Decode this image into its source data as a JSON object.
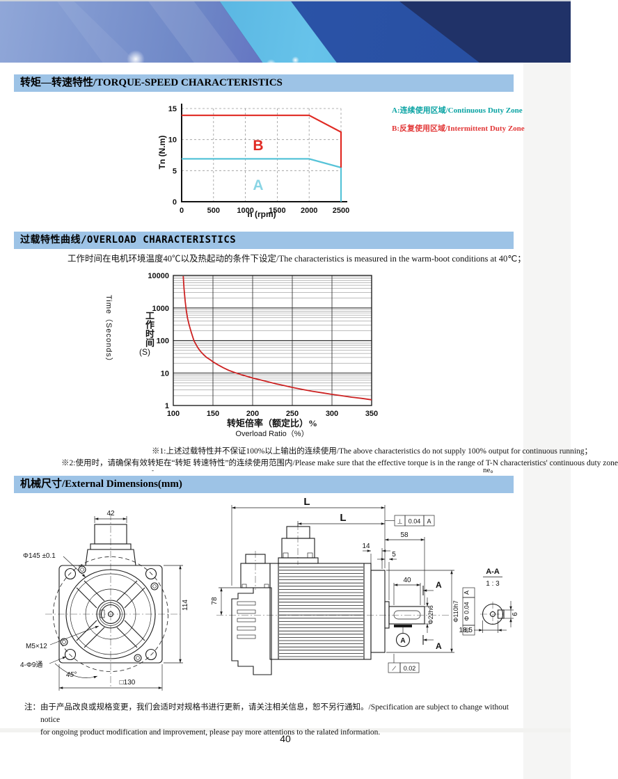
{
  "theme": {
    "header_bg": "#9dc3e6",
    "red": "#e02a23",
    "cyan": "#56c3d8",
    "navy": "#203268"
  },
  "section1": {
    "title": "转矩—转速特性/TORQUE-SPEED CHARACTERISTICS"
  },
  "section2": {
    "title": "过载特性曲线/OVERLOAD CHARACTERISTICS",
    "condition_note": "工作时间在电机环境温度40℃以及热起动的条件下设定/The characteristics is measured in the warm-boot conditions at 40℃；"
  },
  "section3": {
    "title": "机械尺寸/External Dimensions(mm)"
  },
  "notes": {
    "note1": "※1:上述过载特性并不保证100%以上输出的连续使用/The above characteristics do not supply 100% output for continuous running；",
    "note2": "※2:使用时，请确保有效转矩在“转矩 转速特性”的连续使用范围内/Please make sure that the effective torque is in the range of T-N characteristics' continuous duty zone",
    "artifact_dot": "-",
    "artifact_fragment": "ne。"
  },
  "footer": {
    "label": "注：",
    "line1": "由于产品改良或规格变更，我们会适时对规格书进行更新，请关注相关信息，恕不另行通知。/Specification are subject to change without notice",
    "line2": "for ongoing product modification and improvement, please pay more attentions to the ralated information.",
    "page_number": "40"
  },
  "chart_data": [
    {
      "type": "line",
      "title": "Torque-Speed Characteristics",
      "xlabel": "n (rpm)",
      "ylabel": "Tn (N.m)",
      "xlim": [
        0,
        2500
      ],
      "ylim": [
        0,
        15
      ],
      "xticks": [
        0,
        500,
        1000,
        1500,
        2000,
        2500
      ],
      "yticks": [
        0,
        5,
        10,
        15
      ],
      "grid": "dashed",
      "legend_pos": "right-outside",
      "legend": [
        {
          "label": "A:连续使用区域/Continuous Duty Zone",
          "color": "#0aa3a3"
        },
        {
          "label": "B:反复使用区域/Intermittent Duty Zone",
          "color": "#e23838"
        }
      ],
      "series": [
        {
          "name": "A continuous duty limit",
          "color": "#56c3d8",
          "points": [
            [
              0,
              6.9
            ],
            [
              2000,
              6.9
            ],
            [
              2500,
              5.5
            ],
            [
              2500,
              0
            ]
          ]
        },
        {
          "name": "B intermittent duty limit",
          "color": "#e02a23",
          "points": [
            [
              0,
              13.9
            ],
            [
              2000,
              13.9
            ],
            [
              2500,
              11.2
            ],
            [
              2500,
              5.5
            ]
          ]
        }
      ],
      "zone_labels": [
        {
          "text": "B",
          "color": "#e02a23",
          "x": 1200,
          "y": 8.3
        },
        {
          "text": "A",
          "color": "#8ad5e5",
          "x": 1200,
          "y": 1.9
        }
      ]
    },
    {
      "type": "line",
      "title": "Overload Characteristics",
      "xlabel_cn": "转矩倍率（额定比）%",
      "xlabel_en": "Overload Ratio（%）",
      "ylabel_en": "Time（Seconds）",
      "ylabel_cn": "工作时间",
      "ylabel_unit": "(S)",
      "xlim": [
        100,
        350
      ],
      "ylim_log": [
        1,
        10000
      ],
      "yscale": "log",
      "xticks": [
        100,
        150,
        200,
        250,
        300,
        350
      ],
      "yticks": [
        1,
        10,
        100,
        1000,
        10000
      ],
      "grid": "log-full",
      "series": [
        {
          "name": "overload curve",
          "color": "#cc2222",
          "points": [
            [
              112.5,
              9500
            ],
            [
              113.5,
              4000
            ],
            [
              115,
              1600
            ],
            [
              116.5,
              800
            ],
            [
              118,
              480
            ],
            [
              120,
              300
            ],
            [
              122,
              200
            ],
            [
              124,
              140
            ],
            [
              126,
              100
            ],
            [
              128,
              80
            ],
            [
              131,
              60
            ],
            [
              134,
              47
            ],
            [
              138,
              37
            ],
            [
              142,
              30
            ],
            [
              147,
              25
            ],
            [
              150,
              22
            ],
            [
              156,
              18
            ],
            [
              163,
              14.5
            ],
            [
              170,
              12
            ],
            [
              178,
              10.2
            ],
            [
              186,
              8.8
            ],
            [
              195,
              7.6
            ],
            [
              200,
              7
            ],
            [
              210,
              6.1
            ],
            [
              220,
              5.3
            ],
            [
              230,
              4.6
            ],
            [
              240,
              4.1
            ],
            [
              250,
              3.6
            ],
            [
              262,
              3.15
            ],
            [
              275,
              2.75
            ],
            [
              288,
              2.45
            ],
            [
              300,
              2.2
            ],
            [
              312,
              2.0
            ],
            [
              325,
              1.8
            ],
            [
              338,
              1.65
            ],
            [
              350,
              1.5
            ]
          ]
        }
      ]
    }
  ],
  "dimensions": {
    "front": {
      "d42": "42",
      "d145": "Φ145 ±0.1",
      "d114": "114",
      "m5": "M5×12",
      "d9": "4-Φ9通",
      "a45": "45°",
      "s130": "□130"
    },
    "side": {
      "L_outer": "L",
      "L_inner": "L",
      "perp_sym": "⊥",
      "perp_val": "0.04",
      "perp_datum": "A",
      "d58": "58",
      "d14": "14",
      "d5": "5",
      "d40": "40",
      "sectionA_top": "A",
      "sectionA_bottom": "A",
      "shaft": "Φ22h6",
      "pilot": "Φ110h7",
      "conc_sym": "◎",
      "conc_val": "Φ 0.04",
      "conc_datum": "A",
      "datum_label": "A",
      "flat_sym": "∕",
      "flat_val": "0.02",
      "d78": "78"
    },
    "aa": {
      "title": "A-A",
      "scale": "1 : 3",
      "d185": "18.5",
      "d6": "6"
    }
  }
}
